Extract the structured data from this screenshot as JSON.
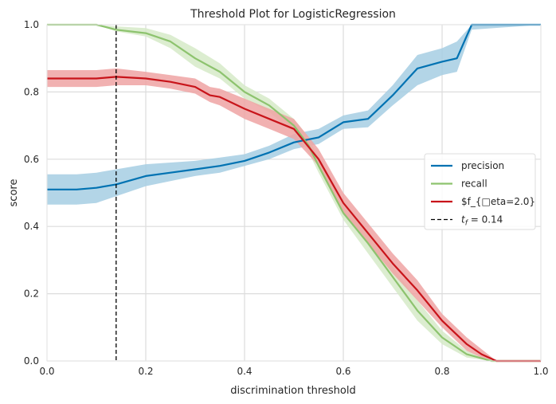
{
  "chart_data": {
    "type": "line",
    "title": "Threshold Plot for LogisticRegression",
    "xlabel": "discrimination threshold",
    "ylabel": "score",
    "xlim": [
      0,
      1
    ],
    "ylim": [
      0,
      1
    ],
    "xticks": [
      "0.0",
      "0.2",
      "0.4",
      "0.6",
      "0.8",
      "1.0"
    ],
    "yticks": [
      "0.0",
      "0.2",
      "0.4",
      "0.6",
      "0.8",
      "1.0"
    ],
    "grid": true,
    "legend_position": "right",
    "threshold_line": {
      "x": 0.14,
      "label": "t_f = 0.14",
      "style": "dashed",
      "color": "#000000"
    },
    "series": [
      {
        "name": "precision",
        "color": "#0072B2",
        "band_color": "#A6CEE3",
        "x": [
          0.0,
          0.06,
          0.1,
          0.14,
          0.2,
          0.25,
          0.3,
          0.35,
          0.4,
          0.45,
          0.5,
          0.55,
          0.6,
          0.65,
          0.7,
          0.75,
          0.8,
          0.83,
          0.86,
          1.0
        ],
        "values": [
          0.51,
          0.51,
          0.515,
          0.525,
          0.55,
          0.56,
          0.57,
          0.58,
          0.595,
          0.62,
          0.65,
          0.665,
          0.71,
          0.72,
          0.79,
          0.87,
          0.89,
          0.9,
          1.0,
          1.0
        ],
        "lower": [
          0.465,
          0.465,
          0.47,
          0.49,
          0.52,
          0.535,
          0.55,
          0.56,
          0.58,
          0.6,
          0.63,
          0.645,
          0.69,
          0.695,
          0.76,
          0.82,
          0.85,
          0.86,
          0.985,
          1.0
        ],
        "upper": [
          0.555,
          0.555,
          0.56,
          0.57,
          0.585,
          0.59,
          0.595,
          0.605,
          0.615,
          0.64,
          0.675,
          0.69,
          0.73,
          0.745,
          0.82,
          0.91,
          0.93,
          0.95,
          1.0,
          1.0
        ]
      },
      {
        "name": "recall",
        "color": "#8DC36E",
        "band_color": "#D6EAC8",
        "x": [
          0.0,
          0.1,
          0.14,
          0.2,
          0.25,
          0.3,
          0.35,
          0.4,
          0.45,
          0.5,
          0.53,
          0.55,
          0.6,
          0.65,
          0.7,
          0.75,
          0.8,
          0.85,
          0.9,
          1.0
        ],
        "values": [
          1.0,
          1.0,
          0.985,
          0.975,
          0.95,
          0.9,
          0.86,
          0.8,
          0.76,
          0.7,
          0.64,
          0.58,
          0.44,
          0.35,
          0.25,
          0.15,
          0.07,
          0.02,
          0.0,
          0.0
        ],
        "lower": [
          1.0,
          1.0,
          0.98,
          0.965,
          0.93,
          0.875,
          0.84,
          0.78,
          0.74,
          0.68,
          0.62,
          0.56,
          0.42,
          0.32,
          0.22,
          0.12,
          0.05,
          0.01,
          0.0,
          0.0
        ],
        "upper": [
          1.0,
          1.0,
          0.995,
          0.99,
          0.97,
          0.93,
          0.885,
          0.82,
          0.78,
          0.72,
          0.665,
          0.6,
          0.46,
          0.38,
          0.28,
          0.18,
          0.09,
          0.03,
          0.0,
          0.0
        ]
      },
      {
        "name": "$f_{□eta=2.0}",
        "color": "#C8141A",
        "band_color": "#EFA3A3",
        "x": [
          0.0,
          0.1,
          0.14,
          0.2,
          0.25,
          0.3,
          0.33,
          0.35,
          0.4,
          0.45,
          0.5,
          0.55,
          0.6,
          0.65,
          0.7,
          0.75,
          0.8,
          0.85,
          0.88,
          0.91,
          1.0
        ],
        "values": [
          0.84,
          0.84,
          0.845,
          0.84,
          0.83,
          0.815,
          0.79,
          0.785,
          0.75,
          0.72,
          0.69,
          0.6,
          0.47,
          0.38,
          0.29,
          0.21,
          0.12,
          0.05,
          0.02,
          0.0,
          0.0
        ],
        "lower": [
          0.815,
          0.815,
          0.82,
          0.82,
          0.81,
          0.795,
          0.77,
          0.76,
          0.72,
          0.69,
          0.66,
          0.58,
          0.44,
          0.35,
          0.26,
          0.18,
          0.1,
          0.03,
          0.01,
          0.0,
          0.0
        ],
        "upper": [
          0.865,
          0.865,
          0.87,
          0.86,
          0.85,
          0.84,
          0.815,
          0.81,
          0.78,
          0.75,
          0.72,
          0.63,
          0.5,
          0.41,
          0.32,
          0.24,
          0.14,
          0.07,
          0.035,
          0.0,
          0.0
        ]
      }
    ]
  },
  "legend": {
    "threshold_label_t": "t",
    "threshold_label_sub": "f",
    "threshold_label_rest": " = 0.14"
  }
}
